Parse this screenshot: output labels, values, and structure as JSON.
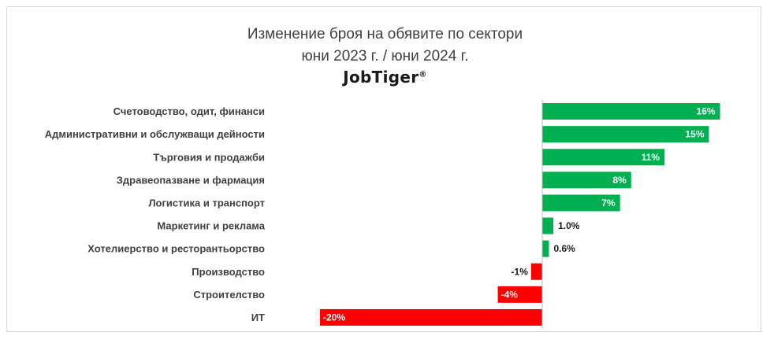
{
  "chart_data": {
    "type": "bar",
    "orientation": "horizontal",
    "title": "Изменение броя на обявите по сектори",
    "subtitle": "юни 2023 г. / юни 2024 г.",
    "brand": "JobTiger",
    "brand_mark": "®",
    "categories": [
      "Счетоводство, одит, финанси",
      "Административни и обслужващи дейности",
      "Търговия и продажби",
      "Здравеопазване и фармация",
      "Логистика и транспорт",
      "Маркетинг и реклама",
      "Хотелиерство и ресторантьорство",
      "Производство",
      "Строителство",
      "ИТ"
    ],
    "values": [
      16,
      15,
      11,
      8,
      7,
      1.0,
      0.6,
      -1,
      -4,
      -20
    ],
    "labels": [
      "16%",
      "15%",
      "11%",
      "8%",
      "7%",
      "1.0%",
      "0.6%",
      "-1%",
      "-4%",
      "-20%"
    ],
    "colors": {
      "positive": "#00b050",
      "negative": "#ff0000",
      "axis": "#bfbfbf",
      "text": "#404040"
    },
    "grid": false,
    "legend": "none"
  }
}
